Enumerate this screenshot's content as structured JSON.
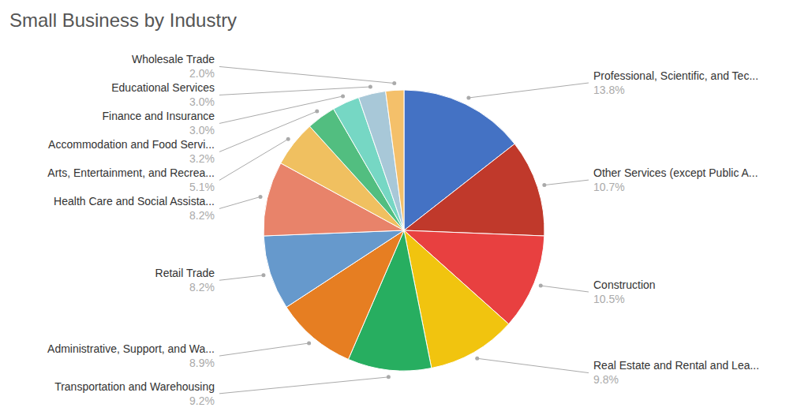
{
  "chart_data": {
    "type": "pie",
    "title": "Small Business by Industry",
    "categories": [
      "Professional, Scientific, and Tec...",
      "Other Services (except Public A...",
      "Construction",
      "Real Estate and Rental and Lea...",
      "Transportation and Warehousing",
      "Administrative, Support, and Wa...",
      "Retail Trade",
      "Health Care and Social Assista...",
      "Arts, Entertainment, and Recrea...",
      "Accommodation and Food Servi...",
      "Finance and Insurance",
      "Educational Services",
      "Wholesale Trade"
    ],
    "values": [
      13.8,
      10.7,
      10.5,
      9.8,
      9.2,
      8.9,
      8.2,
      8.2,
      5.1,
      3.2,
      3.0,
      3.0,
      2.0
    ],
    "value_labels": [
      "13.8%",
      "10.7%",
      "10.5%",
      "9.8%",
      "9.2%",
      "8.9%",
      "8.2%",
      "8.2%",
      "5.1%",
      "3.2%",
      "3.0%",
      "3.0%",
      "2.0%"
    ],
    "colors": [
      "#4472C4",
      "#C0392B",
      "#E84040",
      "#F1C40F",
      "#27AE60",
      "#E67E22",
      "#6699CC",
      "#E8836A",
      "#F0C060",
      "#52BE80",
      "#76D7C4",
      "#A8C8D8",
      "#F4C06A"
    ],
    "data_labels": true
  }
}
